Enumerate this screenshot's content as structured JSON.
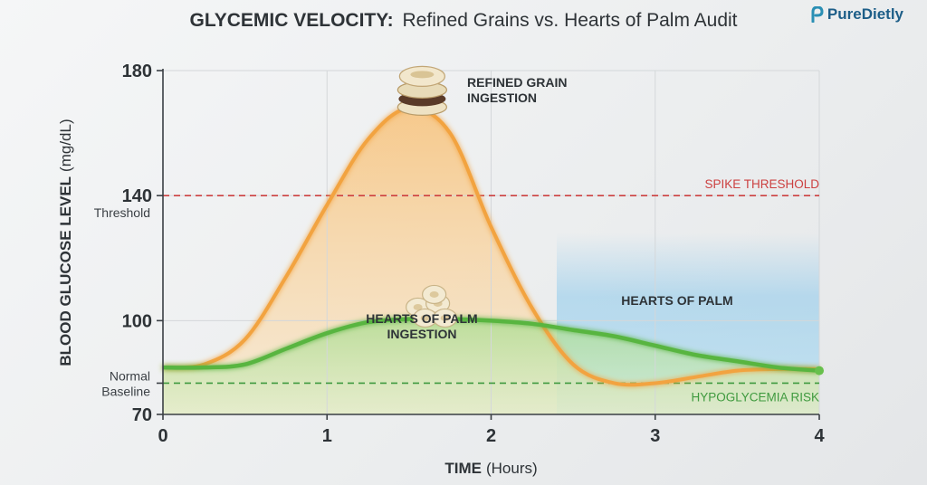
{
  "brand": {
    "name": "PureDietly",
    "color": "#1d5e88"
  },
  "chart_data": {
    "type": "line",
    "title": "GLYCEMIC VELOCITY:",
    "subtitle": "Refined Grains vs. Hearts of Palm Audit",
    "xlabel": "TIME",
    "xlabel_unit": "(Hours)",
    "ylabel": "BLOOD GLUCOSE LEVEL",
    "ylabel_unit": "(mg/dL)",
    "xlim": [
      0,
      4
    ],
    "ylim": [
      70,
      180
    ],
    "x_ticks": [
      "0",
      "1",
      "2",
      "3",
      "4"
    ],
    "y_ticks": [
      {
        "value": 180,
        "label": "180"
      },
      {
        "value": 140,
        "label": "140"
      },
      {
        "value": 100,
        "label": "100"
      },
      {
        "value": 70,
        "label": "70"
      }
    ],
    "y_tick_notes": [
      {
        "value": 140,
        "label": "Threshold"
      },
      {
        "value": 80,
        "label": "Normal Baseline"
      }
    ],
    "grid": true,
    "series": [
      {
        "name": "REFINED GRAIN",
        "color": "#f2a340",
        "x": [
          0,
          0.25,
          0.5,
          0.75,
          1.0,
          1.25,
          1.5,
          1.75,
          2.0,
          2.25,
          2.5,
          2.75,
          3.0,
          3.25,
          3.5,
          3.75,
          4.0
        ],
        "y": [
          85,
          86,
          94,
          114,
          137,
          158,
          168,
          160,
          130,
          104,
          86,
          80,
          80,
          82,
          84,
          84.5,
          84.5
        ]
      },
      {
        "name": "HEARTS OF PALM",
        "color": "#58b540",
        "x": [
          0,
          0.25,
          0.5,
          0.75,
          1.0,
          1.25,
          1.5,
          1.75,
          2.0,
          2.25,
          2.5,
          2.75,
          3.0,
          3.25,
          3.5,
          3.75,
          4.0
        ],
        "y": [
          85,
          85,
          86,
          91,
          96,
          99.5,
          100.5,
          100.5,
          100,
          99,
          97,
          95,
          92,
          89,
          87,
          85,
          84
        ]
      }
    ],
    "reference_lines": [
      {
        "value": 140,
        "label": "SPIKE THRESHOLD",
        "color": "#cc4040"
      },
      {
        "value": 80,
        "label": "HYPOGLYCEMIA RISK",
        "color": "#3f9a3f"
      }
    ],
    "annotations": [
      {
        "text": [
          "REFINED GRAIN",
          "INGESTION"
        ],
        "x": 1.9,
        "y": 168
      },
      {
        "text": [
          "HEARTS OF PALM",
          "INGESTION"
        ],
        "x": 1.6,
        "y": 93
      },
      {
        "text": [
          "HEARTS OF PALM"
        ],
        "x": 3.1,
        "y": 100
      }
    ]
  }
}
